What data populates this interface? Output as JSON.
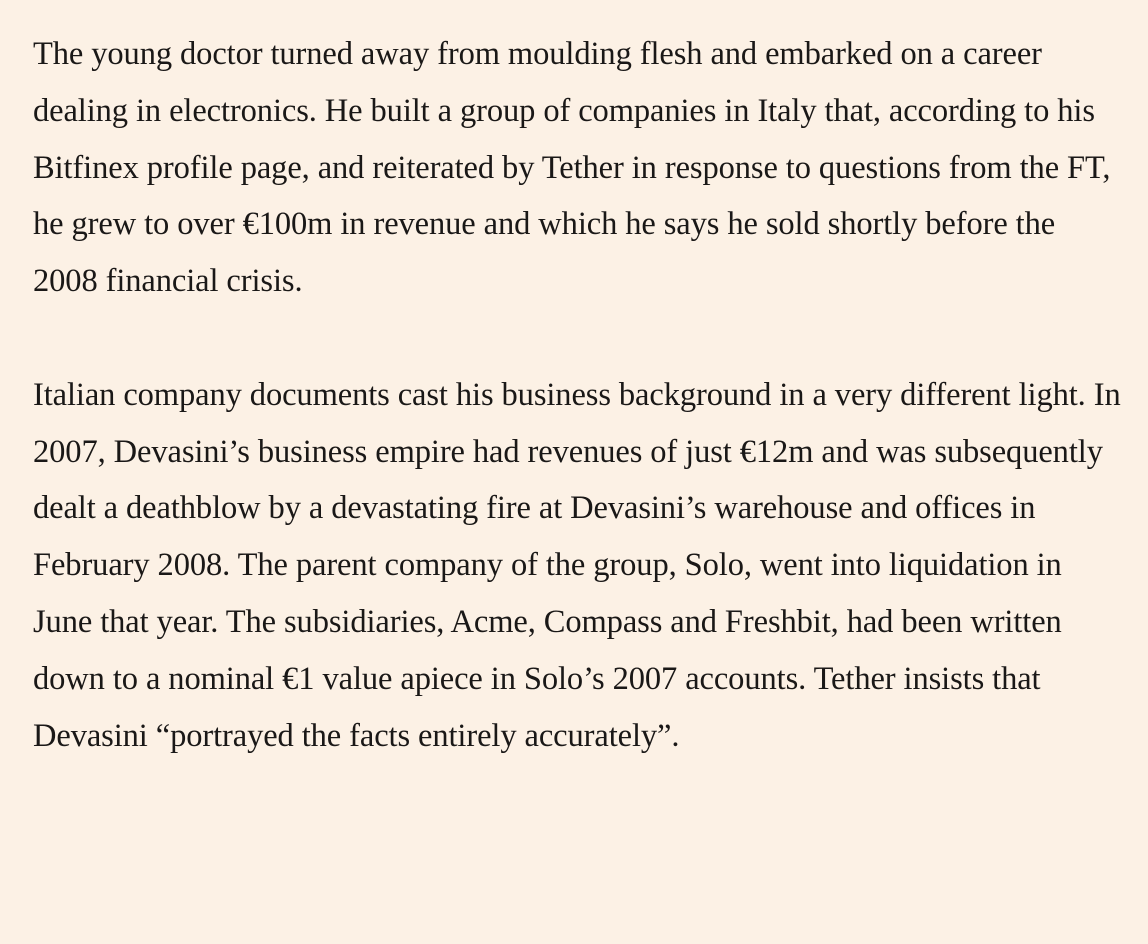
{
  "article": {
    "paragraphs": [
      "The young doctor turned away from moulding flesh and embarked on a career dealing in electronics. He built a group of companies in Italy that, according to his Bitfinex profile page, and reiterated by Tether in response to questions from the FT, he grew to over €100m in revenue and which he says he sold shortly before the 2008 financial crisis.",
      "Italian company documents cast his business background in a very different light. In 2007, Devasini’s business empire had revenues of just €12m and was subsequently dealt a deathblow by a devastating fire at Devasini’s warehouse and offices in February 2008. The parent company of the group, Solo, went into liquidation in June that year. The subsidiaries, Acme, Compass and Freshbit, had been written down to a nominal €1 value apiece in Solo’s 2007 accounts. Tether insists that Devasini “portrayed the facts entirely accurately”."
    ]
  }
}
